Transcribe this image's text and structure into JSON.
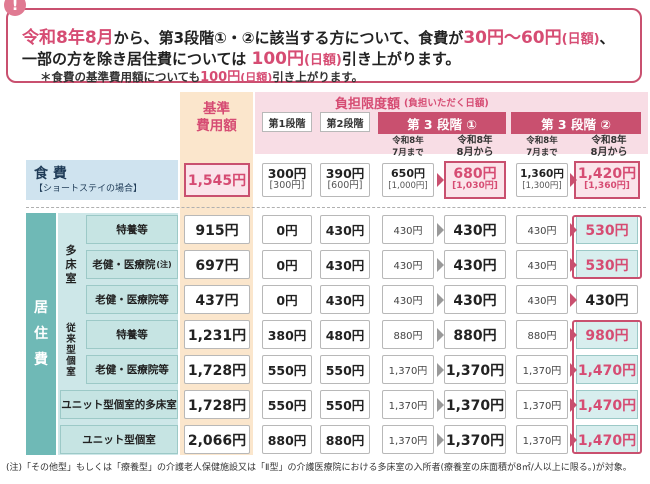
{
  "notice": {
    "badge": "!",
    "line1_parts": [
      "令和8年8月",
      "から、第3段階①・②に該当する方について、食費が",
      "30円〜60円",
      "(日額)",
      "、"
    ],
    "line2_parts": [
      "一部の方を除き居住費については ",
      "100円",
      "(日額)",
      "引き上がります。"
    ],
    "line3_parts": [
      "＊食費の基準費用額についても",
      "100円",
      "(日額)",
      "引き上がります。"
    ]
  },
  "headers": {
    "kijun": "基準",
    "kijun2": "費用額",
    "futan_title": "負担限度額",
    "futan_sub": "(負担いただく日額)",
    "stage1": "第1段階",
    "stage2": "第2段階",
    "stage3_1": "第 3 段階 ①",
    "stage3_2": "第 3 段階 ②",
    "before": [
      "令和8年",
      "7月まで"
    ],
    "after": [
      "令和8年",
      "8月から"
    ]
  },
  "food": {
    "label": "食 費",
    "sublabel": "【ショートステイの場合】",
    "kijun": "1,545円",
    "s1": "300円",
    "s1_sub": "[300円]",
    "s2": "390円",
    "s2_sub": "[600円]",
    "s31_before": "650円",
    "s31_before_sub": "[1,000円]",
    "s31_after": "680円",
    "s31_after_sub": "[1,030円]",
    "s32_before": "1,360円",
    "s32_before_sub": "[1,300円]",
    "s32_after": "1,420円",
    "s32_after_sub": "[1,360円]"
  },
  "living": {
    "label_chars": [
      "居",
      "住",
      "費"
    ],
    "tashoshitsu": [
      "多",
      "床",
      "室"
    ],
    "juraigata": [
      "従",
      "来",
      "型",
      "個",
      "室"
    ],
    "rows": [
      {
        "name": "特養等",
        "note": "",
        "kijun": "915円",
        "s1": "0円",
        "s2": "430円",
        "s31b": "430円",
        "s31a": "430円",
        "s32b": "430円",
        "s32a": "530円"
      },
      {
        "name": "老健・医療院",
        "note": "(注)",
        "kijun": "697円",
        "s1": "0円",
        "s2": "430円",
        "s31b": "430円",
        "s31a": "430円",
        "s32b": "430円",
        "s32a": "530円"
      },
      {
        "name": "老健・医療院等",
        "note": "",
        "kijun": "437円",
        "s1": "0円",
        "s2": "430円",
        "s31b": "430円",
        "s31a": "430円",
        "s32b": "430円",
        "s32a": "430円"
      },
      {
        "name": "特養等",
        "note": "",
        "kijun": "1,231円",
        "s1": "380円",
        "s2": "480円",
        "s31b": "880円",
        "s31a": "880円",
        "s32b": "880円",
        "s32a": "980円"
      },
      {
        "name": "老健・医療院等",
        "note": "",
        "kijun": "1,728円",
        "s1": "550円",
        "s2": "550円",
        "s31b": "1,370円",
        "s31a": "1,370円",
        "s32b": "1,370円",
        "s32a": "1,470円"
      },
      {
        "name": "ユニット型個室的多床室",
        "note": "",
        "kijun": "1,728円",
        "s1": "550円",
        "s2": "550円",
        "s31b": "1,370円",
        "s31a": "1,370円",
        "s32b": "1,370円",
        "s32a": "1,470円"
      },
      {
        "name": "ユニット型個室",
        "note": "",
        "kijun": "2,066円",
        "s1": "880円",
        "s2": "880円",
        "s31b": "1,370円",
        "s31a": "1,370円",
        "s32b": "1,370円",
        "s32a": "1,470円"
      }
    ]
  },
  "footnote": "(注)「その他型」もしくは「療養型」の介護老人保健施設又は「Ⅱ型」の介護医療院における多床室の入所者(療養室の床面積が8㎡/人以上に限る。)が対象。"
}
